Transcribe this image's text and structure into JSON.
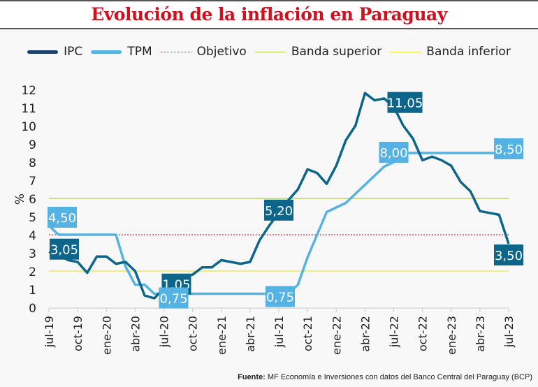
{
  "chart_data": {
    "type": "line",
    "title": "Evolución de la inflación en Paraguay",
    "ylabel": "%",
    "ylim": [
      0,
      12
    ],
    "yticks": [
      "0",
      "1",
      "2",
      "3",
      "4",
      "5",
      "6",
      "7",
      "8",
      "9",
      "10",
      "11",
      "12"
    ],
    "xticks": [
      "jul-19",
      "oct-19",
      "ene-20",
      "abr-20",
      "jul-20",
      "oct-20",
      "ene-21",
      "abr-21",
      "jul-21",
      "oct-21",
      "ene-22",
      "abr-22",
      "jul-22",
      "oct-22",
      "ene-23",
      "abr-23",
      "jul-23"
    ],
    "x_range": [
      "jul-19",
      "jul-23"
    ],
    "legend_position": "top",
    "grid": false,
    "series": [
      {
        "name": "IPC",
        "color": "#0d6689",
        "values": [
          3.05,
          2.9,
          2.6,
          2.5,
          1.9,
          2.8,
          2.8,
          2.4,
          2.5,
          2.0,
          0.65,
          0.5,
          1.05,
          1.5,
          1.7,
          1.8,
          2.2,
          2.2,
          2.6,
          2.5,
          2.4,
          2.5,
          3.7,
          4.5,
          5.2,
          5.9,
          6.5,
          7.6,
          7.4,
          6.8,
          7.8,
          9.2,
          10.0,
          11.8,
          11.4,
          11.5,
          11.05,
          10.0,
          9.3,
          8.1,
          8.3,
          8.1,
          7.8,
          6.9,
          6.4,
          5.3,
          5.2,
          5.1,
          3.5
        ],
        "labels": [
          {
            "month": "jul-19",
            "text": "3,05"
          },
          {
            "month": "jul-20",
            "text": "1,05"
          },
          {
            "month": "jul-21",
            "text": "5,20"
          },
          {
            "month": "jul-22",
            "text": "11,05"
          },
          {
            "month": "jul-23",
            "text": "3,50"
          }
        ]
      },
      {
        "name": "TPM",
        "color": "#55b3e3",
        "values": [
          4.5,
          4.0,
          4.0,
          4.0,
          4.0,
          4.0,
          4.0,
          4.0,
          2.25,
          1.25,
          1.25,
          0.75,
          0.75,
          0.75,
          0.75,
          0.75,
          0.75,
          0.75,
          0.75,
          0.75,
          0.75,
          0.75,
          0.75,
          0.75,
          0.75,
          0.75,
          1.25,
          2.75,
          4.0,
          5.25,
          5.5,
          5.75,
          6.25,
          6.75,
          7.25,
          7.75,
          8.0,
          8.5,
          8.5,
          8.5,
          8.5,
          8.5,
          8.5,
          8.5,
          8.5,
          8.5,
          8.5,
          8.5,
          8.5
        ],
        "labels": [
          {
            "month": "jul-19",
            "text": "4,50"
          },
          {
            "month": "jul-20",
            "text": "0,75"
          },
          {
            "month": "jul-21",
            "text": "0,75"
          },
          {
            "month": "jul-22",
            "text": "8,00"
          },
          {
            "month": "jul-23",
            "text": "8,50"
          }
        ]
      },
      {
        "name": "Objetivo",
        "color": "#e0243a",
        "value": 4,
        "style": "dotted"
      },
      {
        "name": "Banda superior",
        "color": "#b3cf4c",
        "value": 6
      },
      {
        "name": "Banda inferior",
        "color": "#e9e43c",
        "value": 2
      }
    ]
  },
  "source": {
    "label": "Fuente:",
    "text": " MF Economía e Inversiones con datos del Banco Central del Paraguay (BCP)"
  }
}
